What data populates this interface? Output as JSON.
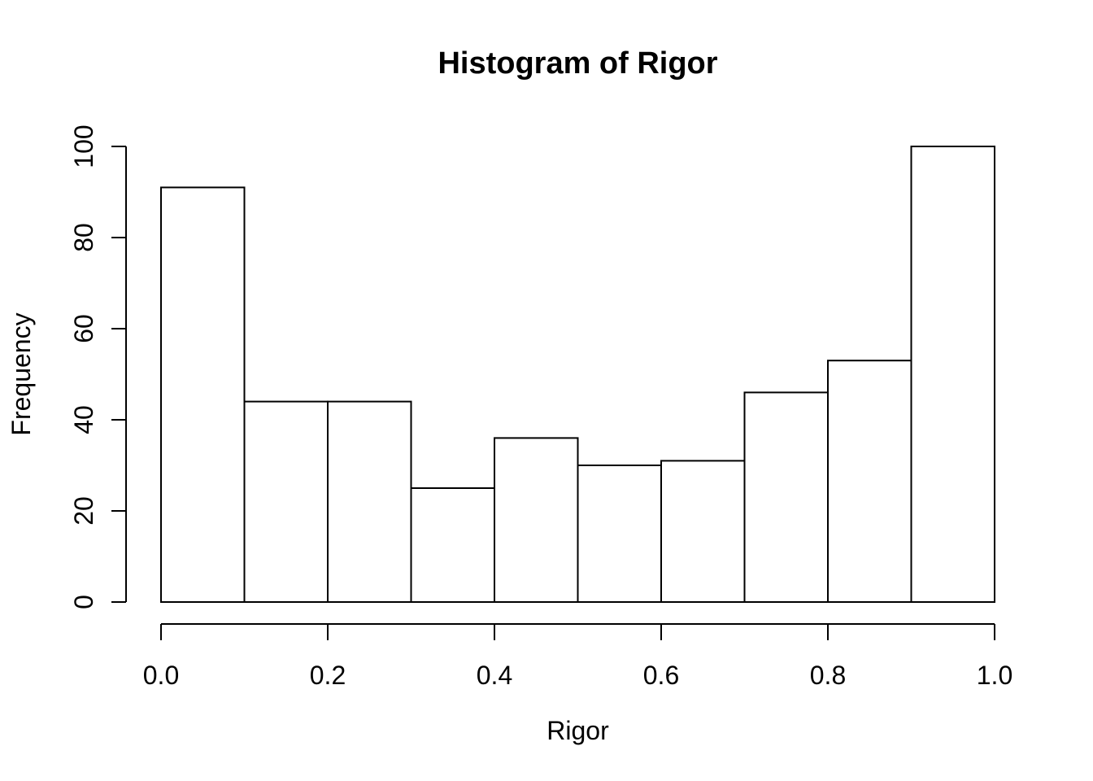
{
  "figure": {
    "background": "#ffffff",
    "stroke_color": "#000000",
    "bar_fill": "#ffffff",
    "text_color": "#000000"
  },
  "chart_data": {
    "type": "bar",
    "subtype": "histogram",
    "title": "Histogram of Rigor",
    "xlabel": "Rigor",
    "ylabel": "Frequency",
    "bin_edges": [
      0.0,
      0.1,
      0.2,
      0.3,
      0.4,
      0.5,
      0.6,
      0.7,
      0.8,
      0.9,
      1.0
    ],
    "counts": [
      91,
      44,
      44,
      25,
      36,
      30,
      31,
      46,
      53,
      100
    ],
    "xlim": [
      0.0,
      1.0
    ],
    "ylim": [
      0,
      100
    ],
    "x_tick_values": [
      0.0,
      0.2,
      0.4,
      0.6,
      0.8,
      1.0
    ],
    "x_tick_labels": [
      "0.0",
      "0.2",
      "0.4",
      "0.6",
      "0.8",
      "1.0"
    ],
    "y_tick_values": [
      0,
      20,
      40,
      60,
      80,
      100
    ],
    "y_tick_labels": [
      "0",
      "20",
      "40",
      "60",
      "80",
      "100"
    ],
    "grid": false,
    "legend_position": "none",
    "bar_fill": "#ffffff",
    "bar_stroke": "#000000"
  }
}
